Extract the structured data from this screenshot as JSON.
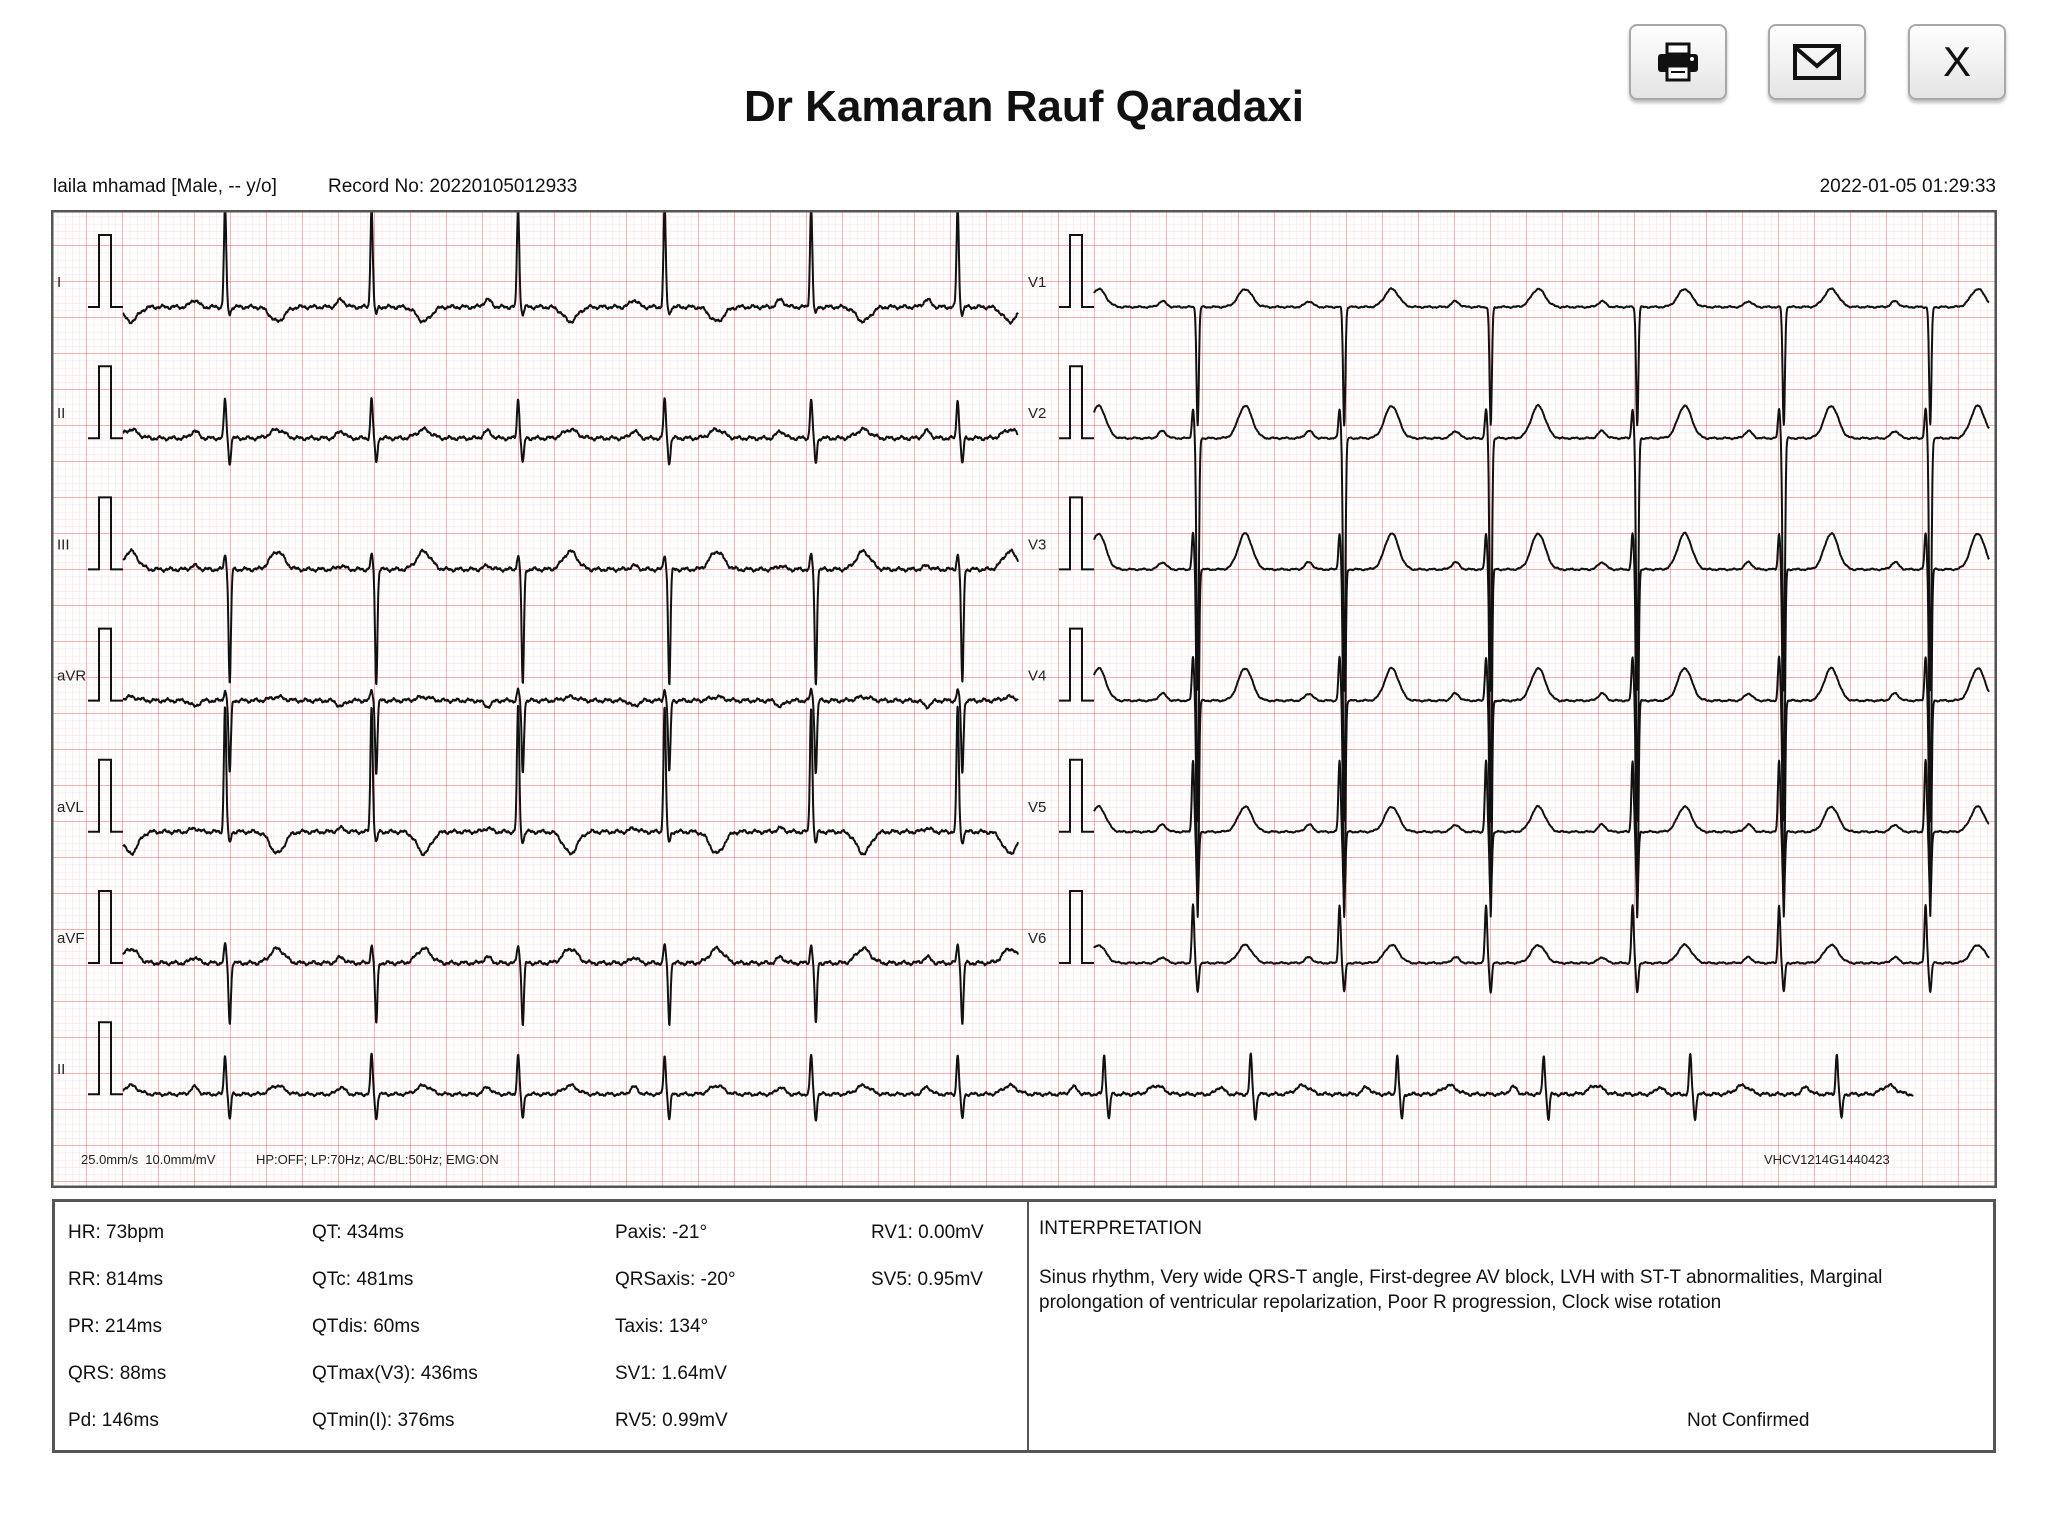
{
  "header": {
    "title": "Dr Kamaran Rauf Qaradaxi",
    "buttons": [
      {
        "icon": "printer-icon",
        "label": "Print"
      },
      {
        "icon": "envelope-icon",
        "label": "Email"
      },
      {
        "icon": "close-icon",
        "label": "X"
      }
    ]
  },
  "patient": {
    "name_info": "laila mhamad  [Male, -- y/o]",
    "record": "Record No: 20220105012933",
    "datetime": "2022-01-05 01:29:33"
  },
  "ecg_footer": {
    "speed_gain": "25.0mm/s  10.0mm/mV",
    "filters": "HP:OFF; LP:70Hz; AC/BL:50Hz; EMG:ON",
    "device": "VHCV1214G1440423"
  },
  "chart_data": {
    "type": "ecg",
    "paper_speed_mm_s": 25,
    "gain_mm_mV": 10,
    "rr_ms": 814,
    "grid": true,
    "colors": {
      "major_grid": "#f77b7b",
      "minor_grid": "#fcdcdc",
      "trace": "#111111"
    },
    "left_leads": [
      {
        "name": "I",
        "P": 0.1,
        "R": 1.4,
        "S": -0.1,
        "T": -0.2
      },
      {
        "name": "II",
        "P": 0.1,
        "R": 0.55,
        "S": -0.35,
        "T": 0.12
      },
      {
        "name": "III",
        "P": 0.05,
        "R": 0.2,
        "S": -1.6,
        "T": 0.25
      },
      {
        "name": "aVR",
        "P": -0.08,
        "R": 0.15,
        "S": -1.0,
        "T": 0.05
      },
      {
        "name": "aVL",
        "P": 0.05,
        "R": 1.75,
        "S": -0.15,
        "T": -0.3
      },
      {
        "name": "aVF",
        "P": 0.08,
        "R": 0.25,
        "S": -0.85,
        "T": 0.2
      }
    ],
    "right_leads": [
      {
        "name": "V1",
        "P": 0.08,
        "R": 0.0,
        "S": -1.64,
        "T": 0.25
      },
      {
        "name": "V2",
        "P": 0.1,
        "R": 0.4,
        "S": -3.5,
        "T": 0.45
      },
      {
        "name": "V3",
        "P": 0.1,
        "R": 0.5,
        "S": -3.5,
        "T": 0.5
      },
      {
        "name": "V4",
        "P": 0.1,
        "R": 0.6,
        "S": -3.0,
        "T": 0.45
      },
      {
        "name": "V5",
        "P": 0.1,
        "R": 0.99,
        "S": -0.95,
        "T": 0.35
      },
      {
        "name": "V6",
        "P": 0.08,
        "R": 0.8,
        "S": -0.4,
        "T": 0.25
      }
    ],
    "rhythm_lead": {
      "name": "II",
      "P": 0.1,
      "R": 0.55,
      "S": -0.35,
      "T": 0.12
    }
  },
  "measurements": [
    [
      "HR: 73bpm",
      "QT: 434ms",
      "Paxis: -21°",
      "RV1: 0.00mV"
    ],
    [
      "RR: 814ms",
      "QTc: 481ms",
      "QRSaxis: -20°",
      "SV5: 0.95mV"
    ],
    [
      "PR: 214ms",
      "QTdis: 60ms",
      "Taxis: 134°",
      ""
    ],
    [
      "QRS: 88ms",
      "QTmax(V3): 436ms",
      "SV1: 1.64mV",
      ""
    ],
    [
      "Pd: 146ms",
      "QTmin(I): 376ms",
      "RV5: 0.99mV",
      ""
    ]
  ],
  "interpretation": {
    "title": "INTERPRETATION",
    "text": "Sinus rhythm, Very wide QRS-T angle, First-degree AV block, LVH with ST-T abnormalities, Marginal prolongation of ventricular repolarization, Poor R progression, Clock wise rotation",
    "status": "Not Confirmed"
  }
}
